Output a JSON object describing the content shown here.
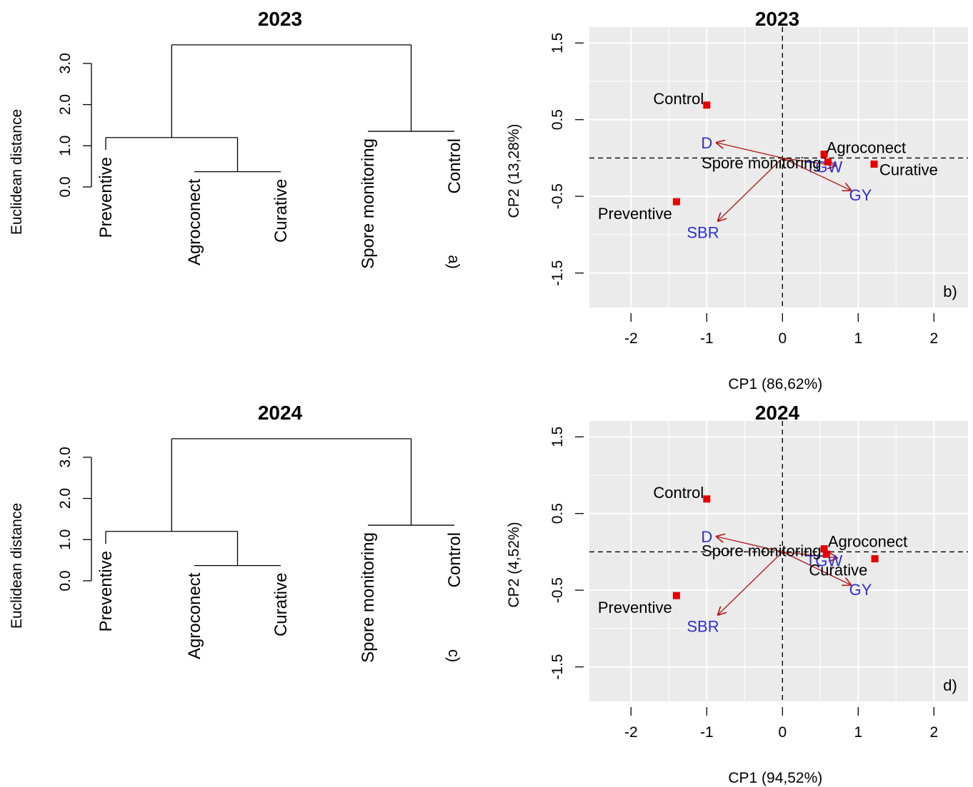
{
  "chart_data": [
    {
      "type": "dendrogram",
      "panel": "a)",
      "title": "2023",
      "ylabel": "Euclidean distance",
      "ylim": [
        0,
        3.5
      ],
      "yticks": [
        0.0,
        1.0,
        2.0,
        3.0
      ],
      "ytick_labels": [
        "0.0",
        "1.0",
        "2.0",
        "3.0"
      ],
      "leaves": [
        "Preventive",
        "Agroconect",
        "Curative",
        "Spore monitoring",
        "Control"
      ],
      "leaf_end": [
        0.9,
        0.37,
        0.37,
        1.35,
        1.35
      ],
      "merges": [
        {
          "a": 1,
          "b": 2,
          "height": 0.37
        },
        {
          "a": 0,
          "b": 5,
          "height": 1.2
        },
        {
          "a": 3,
          "b": 4,
          "height": 1.35
        },
        {
          "a": 6,
          "b": 7,
          "height": 3.45
        }
      ]
    },
    {
      "type": "biplot",
      "panel": "b)",
      "title": "2023",
      "xlabel": "CP1 (86,62%)",
      "ylabel": "CP2 (13,28%)",
      "xlim": [
        -2.55,
        2.45
      ],
      "ylim": [
        -1.95,
        1.8
      ],
      "xticks": [
        -2,
        -1,
        0,
        1,
        2
      ],
      "xtick_labels": [
        "-2",
        "-1",
        "0",
        "1",
        "2"
      ],
      "yticks": [
        -1.5,
        -0.5,
        0.5,
        1.5
      ],
      "ytick_labels": [
        "-1.5",
        "-0.5",
        "0.5",
        "1.5"
      ],
      "points": [
        {
          "label": "Control",
          "x": -1.0,
          "y": 0.69,
          "lx": -1.0,
          "ly": 0.76,
          "anchor": "end"
        },
        {
          "label": "Agroconect",
          "x": 0.55,
          "y": 0.05,
          "lx": 0.58,
          "ly": 0.12,
          "anchor": "start"
        },
        {
          "label": "Spore monitoring",
          "x": 0.6,
          "y": -0.05,
          "lx": 0.55,
          "ly": -0.08,
          "anchor": "end"
        },
        {
          "label": "Curative",
          "x": 1.21,
          "y": -0.08,
          "lx": 1.28,
          "ly": -0.17,
          "anchor": "start"
        },
        {
          "label": "Preventive",
          "x": -1.4,
          "y": -0.57,
          "lx": -1.42,
          "ly": -0.74,
          "anchor": "end"
        }
      ],
      "arrows": [
        {
          "label": "D",
          "x": -0.87,
          "y": 0.2,
          "lx": -1.0,
          "ly": 0.2
        },
        {
          "label": "TGW",
          "x": 0.7,
          "y": -0.1,
          "lx": 0.55,
          "ly": -0.11
        },
        {
          "label": "GY",
          "x": 0.9,
          "y": -0.42,
          "lx": 1.03,
          "ly": -0.48
        },
        {
          "label": "SBR",
          "x": -0.85,
          "y": -0.82,
          "lx": -1.05,
          "ly": -0.97
        }
      ]
    },
    {
      "type": "dendrogram",
      "panel": "c)",
      "title": "2024",
      "ylabel": "Euclidean distance",
      "ylim": [
        0,
        3.5
      ],
      "yticks": [
        0.0,
        1.0,
        2.0,
        3.0
      ],
      "ytick_labels": [
        "0.0",
        "1.0",
        "2.0",
        "3.0"
      ],
      "leaves": [
        "Preventive",
        "Agroconect",
        "Curative",
        "Spore monitoring",
        "Control"
      ],
      "leaf_end": [
        0.9,
        0.37,
        0.37,
        1.35,
        1.35
      ],
      "merges": [
        {
          "a": 1,
          "b": 2,
          "height": 0.37
        },
        {
          "a": 0,
          "b": 5,
          "height": 1.2
        },
        {
          "a": 3,
          "b": 4,
          "height": 1.35
        },
        {
          "a": 6,
          "b": 7,
          "height": 3.45
        }
      ]
    },
    {
      "type": "biplot",
      "panel": "d)",
      "title": "2024",
      "xlabel": "CP1 (94,52%)",
      "ylabel": "CP2 (4,52%)",
      "xlim": [
        -2.55,
        2.45
      ],
      "ylim": [
        -1.95,
        1.8
      ],
      "xticks": [
        -2,
        -1,
        0,
        1,
        2
      ],
      "xtick_labels": [
        "-2",
        "-1",
        "0",
        "1",
        "2"
      ],
      "yticks": [
        -1.5,
        -0.5,
        0.5,
        1.5
      ],
      "ytick_labels": [
        "-1.5",
        "-0.5",
        "0.5",
        "1.5"
      ],
      "points": [
        {
          "label": "Control",
          "x": -1.0,
          "y": 0.69,
          "lx": -1.0,
          "ly": 0.76,
          "anchor": "end"
        },
        {
          "label": "Agroconect",
          "x": 0.55,
          "y": 0.04,
          "lx": 0.6,
          "ly": 0.12,
          "anchor": "start"
        },
        {
          "label": "Spore monitoring",
          "x": 0.58,
          "y": -0.03,
          "lx": 0.55,
          "ly": -0.0,
          "anchor": "end"
        },
        {
          "label": "Curative",
          "x": 1.22,
          "y": -0.09,
          "lx": 0.35,
          "ly": -0.25,
          "anchor": "start"
        },
        {
          "label": "Preventive",
          "x": -1.4,
          "y": -0.57,
          "lx": -1.42,
          "ly": -0.74,
          "anchor": "end"
        }
      ],
      "arrows": [
        {
          "label": "D",
          "x": -0.87,
          "y": 0.2,
          "lx": -1.0,
          "ly": 0.2
        },
        {
          "label": "TGW",
          "x": 0.72,
          "y": -0.08,
          "lx": 0.55,
          "ly": -0.11
        },
        {
          "label": "GY",
          "x": 0.9,
          "y": -0.43,
          "lx": 1.03,
          "ly": -0.49
        },
        {
          "label": "SBR",
          "x": -0.85,
          "y": -0.82,
          "lx": -1.05,
          "ly": -0.97
        }
      ]
    }
  ],
  "colors": {
    "panel_bg": "#ebebeb",
    "grid": "#ffffff",
    "point": "#e30000",
    "arrow": "#b22222",
    "var_label": "#2f2fcf"
  }
}
